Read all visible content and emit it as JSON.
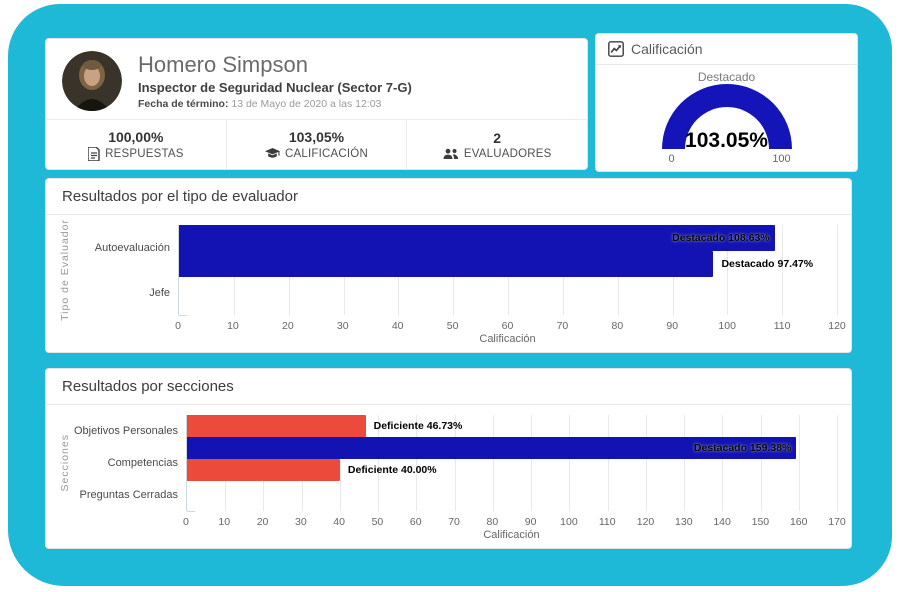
{
  "frame_color": "#1fb9d8",
  "bar_blue": "#1313b3",
  "bar_red": "#ec4a3a",
  "profile": {
    "name": "Homero Simpson",
    "role": "Inspector de Seguridad Nuclear (Sector 7-G)",
    "end_date_label": "Fecha de término:",
    "end_date_value": "13 de Mayo de 2020 a las 12:03",
    "stats": [
      {
        "value": "100,00%",
        "label": "RESPUESTAS",
        "icon": "file-text-icon"
      },
      {
        "value": "103,05%",
        "label": "CALIFICACIÓN",
        "icon": "graduation-cap-icon"
      },
      {
        "value": "2",
        "label": "EVALUADORES",
        "icon": "users-icon"
      }
    ]
  },
  "gauge": {
    "title": "Calificación",
    "icon": "chart-line-icon",
    "band_label": "Destacado",
    "value_label": "103.05%",
    "value_percent": 103.05,
    "min_label": "0",
    "max_label": "100",
    "color": "#1414b8",
    "track_color": "#e8e8e8"
  },
  "chart_data": [
    {
      "type": "bar",
      "orientation": "horizontal",
      "title": "Resultados por el tipo de evaluador",
      "categories": [
        "Autoevaluación",
        "Jefe"
      ],
      "values": [
        108.63,
        97.47
      ],
      "bar_labels": [
        "Destacado 108.63%",
        "Destacado 97.47%"
      ],
      "bar_colors": [
        "#1313b3",
        "#1313b3"
      ],
      "xlabel": "Calificación",
      "ylabel": "Tipo de Evaluador",
      "xlim": [
        0,
        120
      ],
      "tick_step": 10,
      "grid": true,
      "legend": "none"
    },
    {
      "type": "bar",
      "orientation": "horizontal",
      "title": "Resultados por secciones",
      "categories": [
        "Objetivos Personales",
        "Competencias",
        "Preguntas Cerradas"
      ],
      "values": [
        46.73,
        159.38,
        40.0
      ],
      "bar_labels": [
        "Deficiente 46.73%",
        "Destacado 159.38%",
        "Deficiente 40.00%"
      ],
      "bar_colors": [
        "#ec4a3a",
        "#1313b3",
        "#ec4a3a"
      ],
      "xlabel": "Calificación",
      "ylabel": "Secciones",
      "xlim": [
        0,
        170
      ],
      "tick_step": 10,
      "grid": true,
      "legend": "none"
    }
  ]
}
